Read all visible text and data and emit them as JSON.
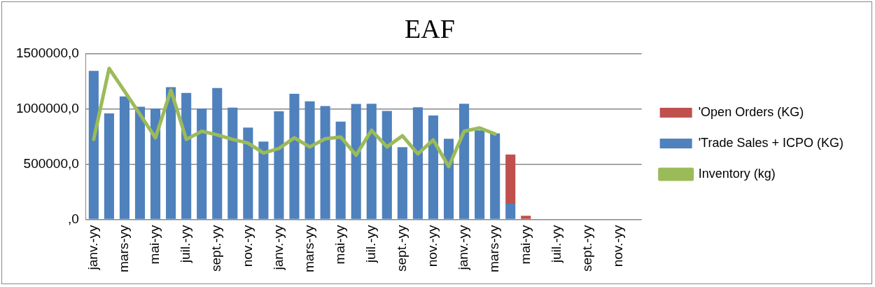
{
  "chart_data": {
    "type": "bar",
    "title": "EAF",
    "stacked": true,
    "legend": "right",
    "grid": "y",
    "categories": [
      "janv.-yy",
      null,
      "mars-yy",
      null,
      "mai-yy",
      null,
      "juil.-yy",
      null,
      "sept.-yy",
      null,
      "nov.-yy",
      null,
      "janv.-yy",
      null,
      "mars-yy",
      null,
      "mai-yy",
      null,
      "juil.-yy",
      null,
      "sept.-yy",
      null,
      "nov.-yy",
      null,
      "janv.-yy",
      null,
      "mars-yy",
      null,
      "mai-yy",
      null,
      "juil.-yy",
      null,
      "sept.-yy",
      null,
      "nov.-yy",
      null
    ],
    "ylim": [
      0,
      1500000
    ],
    "yticks": [
      {
        "value": 0,
        "label": ",0"
      },
      {
        "value": 500000,
        "label": "500000,0"
      },
      {
        "value": 1000000,
        "label": "1000000,0"
      },
      {
        "value": 1500000,
        "label": "1500000,0"
      }
    ],
    "series": [
      {
        "name": "'Trade Sales + ICPO (KG)",
        "color": "#4f81bd",
        "values": [
          1344000,
          959000,
          1112000,
          1019000,
          1003000,
          1197000,
          1145000,
          1003000,
          1189000,
          1011000,
          831000,
          705000,
          978000,
          1137000,
          1068000,
          1025000,
          885000,
          1044000,
          1046000,
          981000,
          653000,
          1014000,
          940000,
          730000,
          1046000,
          806000,
          779000,
          142000,
          0,
          null,
          null,
          null,
          null,
          null,
          null,
          null
        ]
      },
      {
        "name": "'Open Orders (KG)",
        "color": "#c0504d",
        "values": [
          0,
          0,
          0,
          0,
          0,
          0,
          0,
          0,
          0,
          0,
          0,
          0,
          0,
          0,
          0,
          0,
          0,
          0,
          0,
          0,
          0,
          0,
          0,
          0,
          0,
          0,
          0,
          445000,
          33000,
          null,
          null,
          null,
          null,
          null,
          null,
          null
        ]
      },
      {
        "name": "Inventory (kg)",
        "type": "line",
        "color": "#9bbb59",
        "marker": "none",
        "values": [
          724000,
          1366000,
          1160000,
          950000,
          738000,
          1169000,
          724000,
          798000,
          765000,
          724000,
          691000,
          601000,
          642000,
          738000,
          656000,
          730000,
          746000,
          582000,
          806000,
          656000,
          757000,
          593000,
          719000,
          478000,
          798000,
          828000,
          773000,
          null,
          null,
          null,
          null,
          null,
          null,
          null,
          null,
          null
        ]
      }
    ]
  }
}
